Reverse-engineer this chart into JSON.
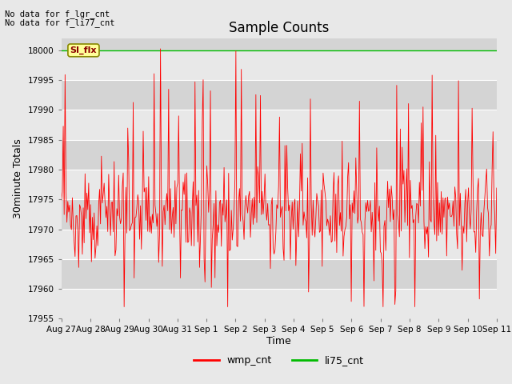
{
  "title": "Sample Counts",
  "xlabel": "Time",
  "ylabel": "30minute Totals",
  "no_data_text": [
    "No data for f_lgr_cnt",
    "No data for f_li77_cnt"
  ],
  "annotation_text": "SI_flx",
  "legend_entries": [
    "wmp_cnt",
    "li75_cnt"
  ],
  "legend_colors": [
    "red",
    "#00bb00"
  ],
  "wmp_base": 17972.5,
  "wmp_noise": 4.0,
  "li75_value": 18000,
  "ylim": [
    17955,
    18002
  ],
  "xlim": [
    0,
    15
  ],
  "num_points": 480,
  "bg_color": "#e8e8e8",
  "plot_bg_color": "#d4d4d4",
  "grid_color": "white",
  "title_fontsize": 12,
  "axis_label_fontsize": 9,
  "tick_fontsize": 7.5
}
